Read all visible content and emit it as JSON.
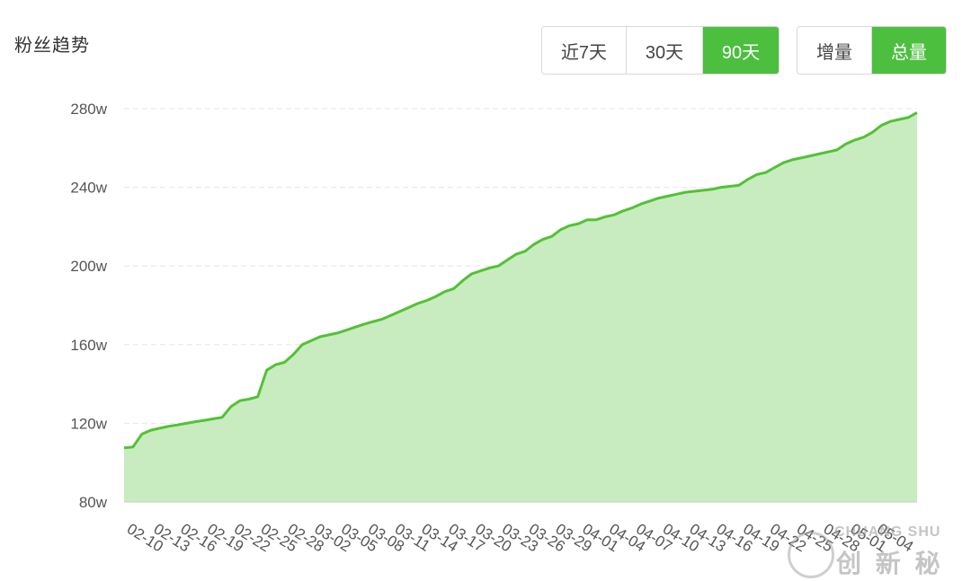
{
  "title": "粉丝趋势",
  "range_buttons": [
    {
      "label": "近7天",
      "active": false
    },
    {
      "label": "30天",
      "active": false
    },
    {
      "label": "90天",
      "active": true
    }
  ],
  "mode_buttons": [
    {
      "label": "增量",
      "active": false
    },
    {
      "label": "总量",
      "active": true
    }
  ],
  "colors": {
    "accent": "#4cbf3f",
    "line": "#52c234",
    "area": "#c8ecbf",
    "grid": "#e6e6e6",
    "axis_text": "#555555"
  },
  "watermark": {
    "latin": "CHUANG SHU",
    "cn": "创 新 秘"
  },
  "chart_data": {
    "type": "area",
    "title": "",
    "xlabel": "",
    "ylabel": "",
    "y_tick_labels": [
      "80w",
      "120w",
      "160w",
      "200w",
      "240w",
      "280w"
    ],
    "y_ticks": [
      80,
      120,
      160,
      200,
      240,
      280
    ],
    "ylim": [
      80,
      280
    ],
    "x_tick_labels": [
      "02-10",
      "02-13",
      "02-16",
      "02-19",
      "02-22",
      "02-25",
      "02-28",
      "03-02",
      "03-05",
      "03-08",
      "03-11",
      "03-14",
      "03-17",
      "03-20",
      "03-23",
      "03-26",
      "03-29",
      "04-01",
      "04-04",
      "04-07",
      "04-10",
      "04-13",
      "04-16",
      "04-19",
      "04-22",
      "04-25",
      "04-28",
      "05-01",
      "05-04"
    ],
    "grid": true,
    "series": [
      {
        "values": [
          107.5,
          108,
          114.5,
          116.5,
          117.5,
          118.5,
          119.2,
          120,
          120.8,
          121.5,
          122.3,
          123,
          128.5,
          131.5,
          132.3,
          133.5,
          147,
          149.8,
          151,
          155,
          160,
          162,
          164,
          165,
          166,
          167.5,
          169,
          170.5,
          171.8,
          173,
          175,
          177,
          179,
          181,
          182.5,
          184.5,
          187,
          188.5,
          192.5,
          196,
          197.5,
          199,
          200,
          203,
          206,
          207.5,
          211,
          213.5,
          215,
          218.5,
          220.5,
          221.5,
          223.5,
          223.5,
          225,
          226,
          228,
          229.5,
          231.5,
          233,
          234.5,
          235.5,
          236.5,
          237.5,
          238,
          238.5,
          239,
          240,
          240.5,
          241,
          244,
          246.5,
          247.5,
          250,
          252.5,
          254,
          255,
          256,
          257,
          258,
          259,
          262,
          264,
          265.5,
          268,
          271.5,
          273.5,
          274.5,
          275.5,
          278
        ]
      }
    ]
  }
}
